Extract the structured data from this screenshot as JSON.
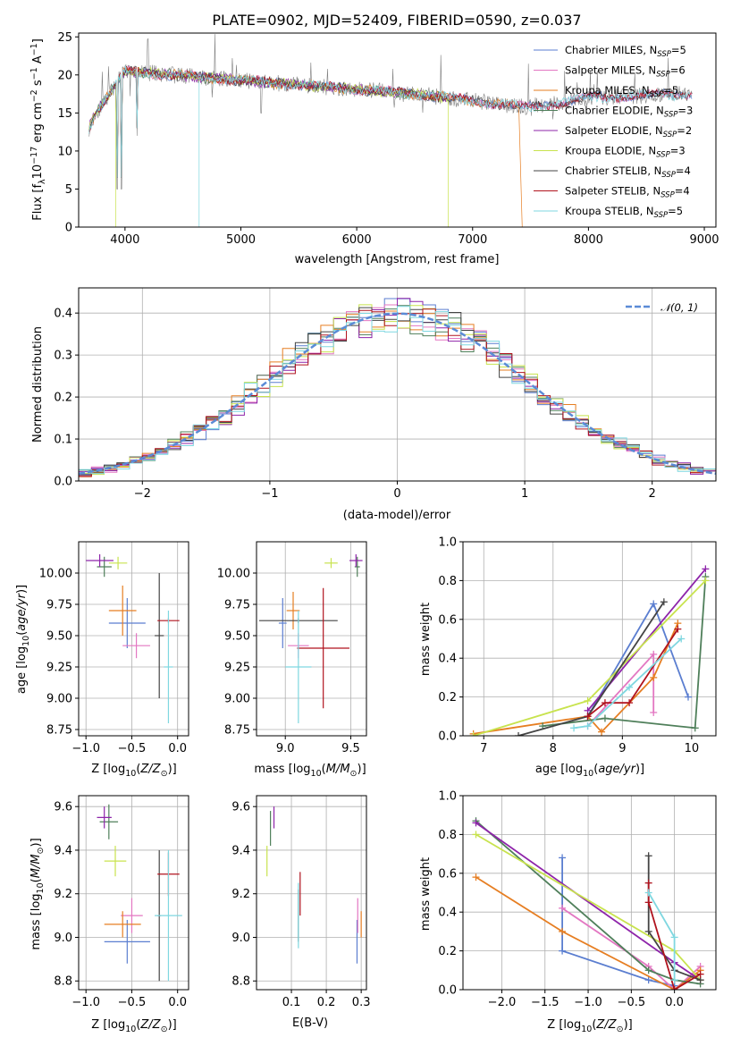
{
  "chart_data": [
    {
      "id": "spectrum",
      "type": "line",
      "title": "PLATE=0902, MJD=52409, FIBERID=0590, z=0.037",
      "xlabel": "wavelength [Angstrom, rest frame]",
      "ylabel_parts": [
        "Flux [f",
        "λ",
        "10",
        "−17",
        " erg cm",
        "−2",
        " s",
        "−1",
        " A",
        "−1",
        "]"
      ],
      "xlim": [
        3600,
        9100
      ],
      "ylim": [
        0,
        25.5
      ],
      "xticks": [
        4000,
        5000,
        6000,
        7000,
        8000,
        9000
      ],
      "yticks": [
        0,
        5,
        10,
        15,
        20,
        25
      ],
      "grid": false,
      "legend_position": "upper-right",
      "series": [
        {
          "name": "Chabrier MILES, N",
          "sub": "SSP",
          "eq": "=5",
          "color": "#5b7ed0",
          "range": [
            3690,
            8900
          ]
        },
        {
          "name": "Salpeter MILES, N",
          "sub": "SSP",
          "eq": "=6",
          "color": "#e377c2",
          "range": [
            3690,
            8900
          ]
        },
        {
          "name": "Kroupa MILES, N",
          "sub": "SSP",
          "eq": "=5",
          "color": "#e67e22",
          "range": [
            3690,
            7400
          ],
          "tail": [
            7400,
            7430
          ]
        },
        {
          "name": "Chabrier ELODIE, N",
          "sub": "SSP",
          "eq": "=3",
          "color": "#4f7f5a",
          "range": [
            3690,
            6790
          ]
        },
        {
          "name": "Salpeter ELODIE, N",
          "sub": "SSP",
          "eq": "=2",
          "color": "#8e24aa",
          "range": [
            3690,
            6790
          ]
        },
        {
          "name": "Kroupa ELODIE, N",
          "sub": "SSP",
          "eq": "=3",
          "color": "#c8e34e",
          "range": [
            3690,
            6790
          ],
          "drops": [
            3920,
            6790
          ]
        },
        {
          "name": "Chabrier STELIB, N",
          "sub": "SSP",
          "eq": "=4",
          "color": "#444444",
          "range": [
            3690,
            8900
          ]
        },
        {
          "name": "Salpeter STELIB, N",
          "sub": "SSP",
          "eq": "=4",
          "color": "#b0131e",
          "range": [
            3690,
            8900
          ]
        },
        {
          "name": "Kroupa STELIB, N",
          "sub": "SSP",
          "eq": "=5",
          "color": "#7fd7e0",
          "range": [
            3690,
            8900
          ],
          "drops": [
            4640
          ]
        }
      ],
      "observed_color": "#808080"
    },
    {
      "id": "residuals",
      "type": "step",
      "ylabel": "Normed distribution",
      "xlabel": "(data-model)/error",
      "xlim": [
        -2.5,
        2.5
      ],
      "ylim": [
        0,
        0.46
      ],
      "xticks": [
        -2,
        -1,
        0,
        1,
        2
      ],
      "yticks": [
        0.0,
        0.1,
        0.2,
        0.3,
        0.4
      ],
      "grid": true,
      "legend": "𝒩(0, 1)",
      "legend_position": "upper-right",
      "gaussian_color": "#5b8bd6"
    },
    {
      "id": "age_vs_Z",
      "type": "errorbar",
      "xlabel_parts": [
        "Z [log",
        "10",
        "(",
        "Z/Z",
        "⊙",
        ")]"
      ],
      "ylabel_parts": [
        "age  [log",
        "10",
        "(",
        "age/yr",
        ")]"
      ],
      "xlim": [
        -1.08,
        0.12
      ],
      "ylim": [
        8.7,
        10.25
      ],
      "xticks": [
        -1.0,
        -0.5,
        0.0
      ],
      "yticks": [
        8.75,
        9.0,
        9.25,
        9.5,
        9.75,
        10.0
      ],
      "grid": true,
      "points": [
        {
          "c": 0,
          "x": -0.55,
          "xe": 0.2,
          "y": 9.6,
          "ye": 0.2
        },
        {
          "c": 1,
          "x": -0.45,
          "xe": 0.15,
          "y": 9.42,
          "ye": 0.1
        },
        {
          "c": 2,
          "x": -0.6,
          "xe": 0.15,
          "y": 9.7,
          "ye": 0.2
        },
        {
          "c": 3,
          "x": -0.8,
          "xe": 0.08,
          "y": 10.05,
          "ye": 0.08
        },
        {
          "c": 4,
          "x": -0.85,
          "xe": 0.15,
          "y": 10.1,
          "ye": 0.05
        },
        {
          "c": 5,
          "x": -0.65,
          "xe": 0.1,
          "y": 10.08,
          "ye": 0.05
        },
        {
          "c": 6,
          "x": -0.2,
          "xe": 0.05,
          "y": 9.5,
          "ye": 0.5
        },
        {
          "c": 7,
          "x": -0.1,
          "xe": 0.12,
          "y": 9.62,
          "ye": 0.02
        },
        {
          "c": 8,
          "x": -0.1,
          "xe": 0.05,
          "y": 9.25,
          "ye": 0.45
        }
      ]
    },
    {
      "id": "age_vs_mass",
      "type": "errorbar",
      "xlabel_parts": [
        "mass [log",
        "10",
        "(",
        "M/M",
        "⊙",
        ")]"
      ],
      "xlim": [
        8.78,
        9.62
      ],
      "ylim": [
        8.7,
        10.25
      ],
      "xticks": [
        9.0,
        9.5
      ],
      "yticks": [
        8.75,
        9.0,
        9.25,
        9.5,
        9.75,
        10.0
      ],
      "grid": true,
      "points": [
        {
          "c": 0,
          "x": 8.98,
          "xe": 0.03,
          "y": 9.6,
          "ye": 0.2
        },
        {
          "c": 1,
          "x": 9.1,
          "xe": 0.08,
          "y": 9.42,
          "ye": 0.1
        },
        {
          "c": 2,
          "x": 9.06,
          "xe": 0.05,
          "y": 9.7,
          "ye": 0.15
        },
        {
          "c": 3,
          "x": 9.55,
          "xe": 0.02,
          "y": 10.05,
          "ye": 0.08
        },
        {
          "c": 4,
          "x": 9.54,
          "xe": 0.05,
          "y": 10.1,
          "ye": 0.05
        },
        {
          "c": 5,
          "x": 9.35,
          "xe": 0.05,
          "y": 10.08,
          "ye": 0.04
        },
        {
          "c": 6,
          "x": 9.1,
          "xe": 0.3,
          "y": 9.62,
          "ye": 0.02
        },
        {
          "c": 7,
          "x": 9.29,
          "xe": 0.2,
          "y": 9.4,
          "ye": 0.48
        },
        {
          "c": 8,
          "x": 9.1,
          "xe": 0.1,
          "y": 9.25,
          "ye": 0.45
        }
      ]
    },
    {
      "id": "mass_weight_vs_age",
      "type": "line",
      "xlabel_parts": [
        "age  [log",
        "10",
        "(",
        "age/yr",
        ")]"
      ],
      "ylabel": "mass weight",
      "xlim": [
        6.7,
        10.35
      ],
      "ylim": [
        0,
        1.0
      ],
      "xticks": [
        7,
        8,
        9,
        10
      ],
      "yticks": [
        0.0,
        0.2,
        0.4,
        0.6,
        0.8,
        1.0
      ],
      "grid": true,
      "series": [
        {
          "c": 0,
          "x": [
            8.5,
            9.45,
            9.95
          ],
          "y": [
            0.1,
            0.68,
            0.2
          ]
        },
        {
          "c": 1,
          "x": [
            8.5,
            9.45,
            9.45
          ],
          "y": [
            0.05,
            0.42,
            0.12
          ]
        },
        {
          "c": 2,
          "x": [
            6.85,
            8.5,
            8.7,
            9.45,
            9.8
          ],
          "y": [
            0.01,
            0.1,
            0.02,
            0.3,
            0.58
          ]
        },
        {
          "c": 3,
          "x": [
            7.85,
            8.75,
            10.05,
            10.2
          ],
          "y": [
            0.05,
            0.09,
            0.04,
            0.82
          ]
        },
        {
          "c": 4,
          "x": [
            8.5,
            10.2
          ],
          "y": [
            0.13,
            0.86
          ]
        },
        {
          "c": 5,
          "x": [
            6.85,
            8.5,
            10.2
          ],
          "y": [
            0.0,
            0.18,
            0.8
          ]
        },
        {
          "c": 6,
          "x": [
            7.5,
            8.5,
            9.6
          ],
          "y": [
            0.0,
            0.1,
            0.69
          ]
        },
        {
          "c": 7,
          "x": [
            8.5,
            8.75,
            9.1,
            9.8
          ],
          "y": [
            0.1,
            0.17,
            0.17,
            0.55
          ]
        },
        {
          "c": 8,
          "x": [
            8.3,
            8.5,
            9.1,
            9.85
          ],
          "y": [
            0.04,
            0.05,
            0.25,
            0.5
          ]
        }
      ]
    },
    {
      "id": "mass_vs_Z",
      "type": "errorbar",
      "xlabel_parts": [
        "Z [log",
        "10",
        "(",
        "Z/Z",
        "⊙",
        ")]"
      ],
      "ylabel_parts": [
        "mass [log",
        "10",
        "(",
        "M/M",
        "⊙",
        ")]"
      ],
      "xlim": [
        -1.08,
        0.12
      ],
      "ylim": [
        8.76,
        9.65
      ],
      "xticks": [
        -1.0,
        -0.5,
        0.0
      ],
      "yticks": [
        8.8,
        9.0,
        9.2,
        9.4,
        9.6
      ],
      "grid": true,
      "points": [
        {
          "c": 0,
          "x": -0.55,
          "xe": 0.25,
          "y": 8.98,
          "ye": 0.1
        },
        {
          "c": 1,
          "x": -0.5,
          "xe": 0.12,
          "y": 9.1,
          "ye": 0.08
        },
        {
          "c": 2,
          "x": -0.6,
          "xe": 0.2,
          "y": 9.06,
          "ye": 0.06
        },
        {
          "c": 3,
          "x": -0.75,
          "xe": 0.1,
          "y": 9.53,
          "ye": 0.08
        },
        {
          "c": 4,
          "x": -0.8,
          "xe": 0.08,
          "y": 9.55,
          "ye": 0.05
        },
        {
          "c": 5,
          "x": -0.68,
          "xe": 0.12,
          "y": 9.35,
          "ye": 0.07
        },
        {
          "c": 6,
          "x": -0.2,
          "xe": 0.02,
          "y": 9.1,
          "ye": 0.3
        },
        {
          "c": 7,
          "x": -0.1,
          "xe": 0.12,
          "y": 9.29,
          "ye": 0.1
        },
        {
          "c": 8,
          "x": -0.1,
          "xe": 0.15,
          "y": 9.1,
          "ye": 0.3
        }
      ]
    },
    {
      "id": "mass_vs_ebv",
      "type": "errorbar",
      "xlabel": "E(B-V)",
      "xlim": [
        0.0,
        0.315
      ],
      "ylim": [
        8.76,
        9.65
      ],
      "xticks": [
        0.1,
        0.2,
        0.3
      ],
      "yticks": [
        8.8,
        9.0,
        9.2,
        9.4,
        9.6
      ],
      "grid": true,
      "points": [
        {
          "c": 0,
          "x": 0.288,
          "xe": 0.0,
          "y": 8.98,
          "ye": 0.1
        },
        {
          "c": 1,
          "x": 0.29,
          "xe": 0.0,
          "y": 9.1,
          "ye": 0.08
        },
        {
          "c": 2,
          "x": 0.3,
          "xe": 0.0,
          "y": 9.06,
          "ye": 0.06
        },
        {
          "c": 3,
          "x": 0.04,
          "xe": 0.0,
          "y": 9.5,
          "ye": 0.08
        },
        {
          "c": 4,
          "x": 0.05,
          "xe": 0.0,
          "y": 9.55,
          "ye": 0.05
        },
        {
          "c": 5,
          "x": 0.03,
          "xe": 0.0,
          "y": 9.35,
          "ye": 0.07
        },
        {
          "c": 6,
          "x": 0.12,
          "xe": 0.0,
          "y": 9.1,
          "ye": 0.12
        },
        {
          "c": 7,
          "x": 0.125,
          "xe": 0.0,
          "y": 9.2,
          "ye": 0.1
        },
        {
          "c": 8,
          "x": 0.12,
          "xe": 0.0,
          "y": 9.1,
          "ye": 0.15
        }
      ]
    },
    {
      "id": "mass_weight_vs_Z",
      "type": "line",
      "xlabel_parts": [
        "Z [log",
        "10",
        "(",
        "Z/Z",
        "⊙",
        ")]"
      ],
      "ylabel": "mass weight",
      "xlim": [
        -2.45,
        0.48
      ],
      "ylim": [
        0,
        1.0
      ],
      "xticks": [
        -2.0,
        -1.5,
        -1.0,
        -0.5,
        0.0
      ],
      "yticks": [
        0.0,
        0.2,
        0.4,
        0.6,
        0.8,
        1.0
      ],
      "grid": true,
      "series": [
        {
          "c": 0,
          "x": [
            -1.3,
            -1.3,
            -0.3,
            0.0
          ],
          "y": [
            0.68,
            0.2,
            0.05,
            0.02
          ]
        },
        {
          "c": 1,
          "x": [
            -1.3,
            -0.3,
            0.0,
            0.3
          ],
          "y": [
            0.42,
            0.12,
            0.0,
            0.12
          ]
        },
        {
          "c": 2,
          "x": [
            -2.3,
            -1.3,
            0.0,
            0.3
          ],
          "y": [
            0.58,
            0.3,
            0.0,
            0.1
          ]
        },
        {
          "c": 3,
          "x": [
            -2.3,
            -0.3,
            0.0,
            0.3
          ],
          "y": [
            0.87,
            0.1,
            0.05,
            0.03
          ]
        },
        {
          "c": 4,
          "x": [
            -2.3,
            0.0,
            0.3
          ],
          "y": [
            0.86,
            0.14,
            0.05
          ]
        },
        {
          "c": 5,
          "x": [
            -2.3,
            0.0,
            0.3
          ],
          "y": [
            0.8,
            0.2,
            0.05
          ]
        },
        {
          "c": 6,
          "x": [
            -0.3,
            -0.3,
            0.0,
            0.3
          ],
          "y": [
            0.69,
            0.3,
            0.1,
            0.05
          ]
        },
        {
          "c": 7,
          "x": [
            -0.3,
            -0.3,
            0.0,
            0.3
          ],
          "y": [
            0.55,
            0.45,
            0.0,
            0.08
          ]
        },
        {
          "c": 8,
          "x": [
            -0.3,
            0.0,
            0.0
          ],
          "y": [
            0.5,
            0.27,
            0.05
          ]
        }
      ]
    }
  ]
}
